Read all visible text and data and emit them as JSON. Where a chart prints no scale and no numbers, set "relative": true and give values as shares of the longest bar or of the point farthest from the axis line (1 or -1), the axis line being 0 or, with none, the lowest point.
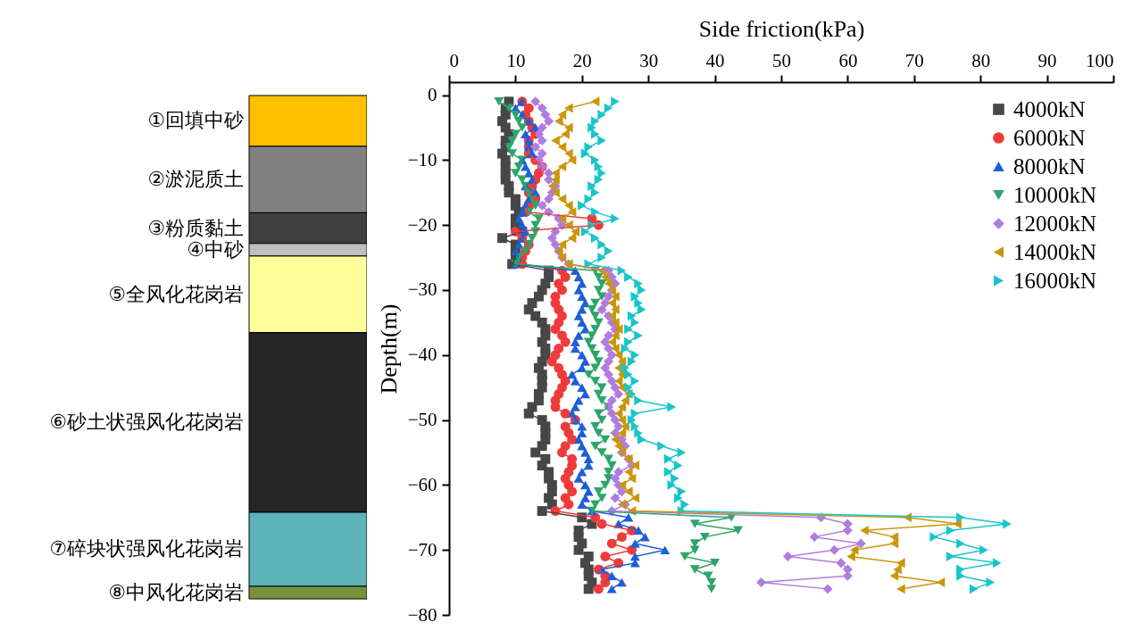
{
  "chart_data": [
    {
      "type": "bar",
      "stacked": true,
      "relative": true,
      "categories": [
        null
      ],
      "series": [
        {
          "name": "①回填中砂",
          "color": "#ffc000",
          "values": [
            -0.101
          ]
        },
        {
          "name": "②淤泥质土",
          "color": "#808080",
          "values": [
            -0.132
          ]
        },
        {
          "name": "③粉质黏土",
          "color": "#404040",
          "values": [
            -0.061
          ]
        },
        {
          "name": "④中砂",
          "color": "#bfbfbf",
          "values": [
            -0.025
          ]
        },
        {
          "name": "⑤全风化花岗岩",
          "color": "#ffff99",
          "values": [
            -0.152
          ]
        },
        {
          "name": "⑥砂土状强风化花岗岩",
          "color": "#262626",
          "values": [
            -0.357
          ]
        },
        {
          "name": "⑦碎块状强风化花岗岩",
          "color": "#5eb3b8",
          "values": [
            -0.147
          ]
        },
        {
          "name": "⑧中风化花岗岩",
          "color": "#76923c",
          "values": [
            -0.025
          ]
        }
      ]
    },
    {
      "type": "line",
      "xlabel": "Side friction(kPa)",
      "ylabel": "Depth(m)",
      "xlim": [
        0,
        100
      ],
      "xticks": [
        0,
        10,
        20,
        30,
        40,
        50,
        60,
        70,
        80,
        90,
        100
      ],
      "ylim": [
        -80,
        2
      ],
      "yticks": [
        -80,
        -70,
        -60,
        -50,
        -40,
        -30,
        -20,
        -10,
        0
      ],
      "legend": "top right",
      "series": [
        {
          "name": "4000kN",
          "color": "#474747",
          "marker": "square",
          "x": [
            9,
            8.5,
            8.5,
            8,
            8.5,
            9,
            8.5,
            8.5,
            8,
            8.5,
            8.5,
            8.5,
            8.5,
            9,
            9,
            10,
            10,
            10.5,
            10,
            10,
            11,
            8,
            10,
            10,
            10,
            9.5,
            15,
            15,
            14.5,
            14,
            13.5,
            12.5,
            12,
            13,
            14,
            14.5,
            14.5,
            14,
            14.5,
            14.5,
            14,
            13.5,
            14,
            14,
            14,
            13.5,
            13.5,
            12.5,
            12,
            14,
            14.5,
            14.5,
            14.5,
            14,
            13,
            14.5,
            14,
            15,
            15,
            15.5,
            15.5,
            15,
            15.5,
            14,
            20,
            21.5,
            19.5,
            19.5,
            20,
            19.5,
            21,
            20.5,
            21,
            21,
            21.5,
            21
          ],
          "values": [
            -1,
            -2,
            -3,
            -4,
            -5,
            -6,
            -7,
            -8,
            -9,
            -10,
            -11,
            -12,
            -13,
            -14,
            -15,
            -16,
            -17,
            -18,
            -19,
            -20,
            -21,
            -22,
            -23,
            -24,
            -25,
            -26,
            -27,
            -28,
            -29,
            -30,
            -31,
            -32,
            -33,
            -34,
            -35,
            -36,
            -37,
            -38,
            -39,
            -40,
            -41,
            -42,
            -43,
            -44,
            -45,
            -46,
            -47,
            -48,
            -49,
            -50,
            -51,
            -52,
            -53,
            -54,
            -55,
            -56,
            -57,
            -58,
            -59,
            -60,
            -61,
            -62,
            -63,
            -64,
            -65,
            -66,
            -67,
            -68,
            -69,
            -70,
            -71,
            -72,
            -73,
            -74,
            -75,
            -76
          ]
        },
        {
          "name": "6000kN",
          "color": "#ef3b3b",
          "marker": "circle",
          "x": [
            11,
            12,
            11.5,
            12,
            12.5,
            13,
            12,
            12,
            12,
            13,
            14,
            13.5,
            13,
            12.5,
            12,
            13,
            12,
            11.5,
            21.5,
            22.5,
            10,
            11,
            12,
            11.5,
            11,
            11,
            17,
            17.5,
            16.5,
            17,
            16,
            16,
            16.5,
            17,
            16.5,
            16,
            17,
            17.5,
            16.5,
            16,
            15.5,
            16.5,
            17,
            17.5,
            17,
            16.5,
            16,
            16,
            17.5,
            19,
            17.5,
            18,
            18.5,
            17.5,
            17,
            18.5,
            18.5,
            18,
            17.5,
            18,
            18.5,
            17.5,
            18,
            16,
            22,
            23,
            27.5,
            26,
            24.5,
            27.5,
            23.5,
            25.5,
            22.5,
            23.5,
            23.5,
            22.5
          ],
          "values": [
            -1,
            -2,
            -3,
            -4,
            -5,
            -6,
            -7,
            -8,
            -9,
            -10,
            -11,
            -12,
            -13,
            -14,
            -15,
            -16,
            -17,
            -18,
            -19,
            -20,
            -21,
            -22,
            -23,
            -24,
            -25,
            -26,
            -27,
            -28,
            -29,
            -30,
            -31,
            -32,
            -33,
            -34,
            -35,
            -36,
            -37,
            -38,
            -39,
            -40,
            -41,
            -42,
            -43,
            -44,
            -45,
            -46,
            -47,
            -48,
            -49,
            -50,
            -51,
            -52,
            -53,
            -54,
            -55,
            -56,
            -57,
            -58,
            -59,
            -60,
            -61,
            -62,
            -63,
            -64,
            -65,
            -66,
            -67,
            -68,
            -69,
            -70,
            -71,
            -72,
            -73,
            -74,
            -75,
            -76
          ]
        },
        {
          "name": "8000kN",
          "color": "#1d5fd8",
          "marker": "triangle-up",
          "x": [
            11,
            10,
            11,
            12,
            13,
            11.5,
            12,
            12,
            12.5,
            11,
            11.5,
            12,
            12.5,
            11.5,
            13,
            12,
            11.5,
            11,
            10.5,
            11,
            11.5,
            11,
            10.5,
            10,
            10.5,
            10,
            19,
            19.5,
            20,
            19.5,
            20,
            20.5,
            20,
            19.5,
            20,
            20.5,
            19.5,
            19,
            19,
            20,
            20.5,
            20,
            18.5,
            19,
            20,
            20.5,
            19.5,
            19,
            18.5,
            19,
            20,
            20,
            19.5,
            20,
            20.5,
            21,
            21,
            20,
            19.5,
            20.5,
            21,
            20.5,
            20,
            21.5,
            27,
            25.5,
            28.5,
            29.5,
            28,
            32.5,
            28,
            28,
            23,
            24.5,
            26,
            24.5
          ],
          "values": [
            -1,
            -2,
            -3,
            -4,
            -5,
            -6,
            -7,
            -8,
            -9,
            -10,
            -11,
            -12,
            -13,
            -14,
            -15,
            -16,
            -17,
            -18,
            -19,
            -20,
            -21,
            -22,
            -23,
            -24,
            -25,
            -26,
            -27,
            -28,
            -29,
            -30,
            -31,
            -32,
            -33,
            -34,
            -35,
            -36,
            -37,
            -38,
            -39,
            -40,
            -41,
            -42,
            -43,
            -44,
            -45,
            -46,
            -47,
            -48,
            -49,
            -50,
            -51,
            -52,
            -53,
            -54,
            -55,
            -56,
            -57,
            -58,
            -59,
            -60,
            -61,
            -62,
            -63,
            -64,
            -65,
            -66,
            -67,
            -68,
            -69,
            -70,
            -71,
            -72,
            -73,
            -74,
            -75,
            -76
          ]
        },
        {
          "name": "10000kN",
          "color": "#2ea56b",
          "marker": "triangle-down",
          "x": [
            7.5,
            9,
            10,
            10.5,
            11,
            10,
            9.5,
            9,
            9.5,
            11,
            10.5,
            10,
            11,
            11.5,
            12,
            12.5,
            13,
            12,
            13.5,
            13,
            13,
            12.5,
            12,
            11.5,
            10.5,
            10,
            22,
            22.5,
            23,
            22.5,
            23,
            22,
            21.5,
            22,
            22.5,
            22,
            21.5,
            21,
            21.5,
            22,
            22.5,
            22,
            21,
            22,
            23,
            22.5,
            23,
            24,
            22.5,
            23,
            22,
            22.5,
            23.5,
            22,
            23,
            24,
            24.5,
            24,
            24,
            23.5,
            22.5,
            23,
            22,
            21.5,
            42.5,
            37,
            43.5,
            38.5,
            37,
            37,
            35.5,
            40,
            37,
            39,
            39.5,
            39.5
          ],
          "values": [
            -1,
            -2,
            -3,
            -4,
            -5,
            -6,
            -7,
            -8,
            -9,
            -10,
            -11,
            -12,
            -13,
            -14,
            -15,
            -16,
            -17,
            -18,
            -19,
            -20,
            -21,
            -22,
            -23,
            -24,
            -25,
            -26,
            -27,
            -28,
            -29,
            -30,
            -31,
            -32,
            -33,
            -34,
            -35,
            -36,
            -37,
            -38,
            -39,
            -40,
            -41,
            -42,
            -43,
            -44,
            -45,
            -46,
            -47,
            -48,
            -49,
            -50,
            -51,
            -52,
            -53,
            -54,
            -55,
            -56,
            -57,
            -58,
            -59,
            -60,
            -61,
            -62,
            -63,
            -64,
            -65,
            -66,
            -67,
            -68,
            -69,
            -70,
            -71,
            -72,
            -73,
            -74,
            -75,
            -76
          ]
        },
        {
          "name": "12000kN",
          "color": "#b07ce0",
          "marker": "diamond",
          "x": [
            13,
            14,
            14.5,
            15,
            14,
            13.5,
            14,
            13,
            14,
            13.5,
            14,
            15,
            15,
            16,
            15.5,
            15,
            14,
            15,
            16.5,
            17,
            16,
            15.5,
            16,
            16.5,
            17,
            18,
            24,
            24.5,
            25,
            24.5,
            24,
            23.5,
            23,
            24,
            24.5,
            25,
            24,
            23.5,
            24,
            24.5,
            24,
            23.5,
            24,
            24.5,
            25,
            25.5,
            24.5,
            24,
            24.5,
            25,
            25.5,
            25,
            26,
            26.5,
            26,
            27,
            27.5,
            25.5,
            25,
            25.5,
            26,
            25,
            26.5,
            24.5,
            56,
            60,
            60,
            55,
            62,
            58,
            51,
            59,
            60,
            60,
            47,
            57
          ],
          "values": [
            -1,
            -2,
            -3,
            -4,
            -5,
            -6,
            -7,
            -8,
            -9,
            -10,
            -11,
            -12,
            -13,
            -14,
            -15,
            -16,
            -17,
            -18,
            -19,
            -20,
            -21,
            -22,
            -23,
            -24,
            -25,
            -26,
            -27,
            -28,
            -29,
            -30,
            -31,
            -32,
            -33,
            -34,
            -35,
            -36,
            -37,
            -38,
            -39,
            -40,
            -41,
            -42,
            -43,
            -44,
            -45,
            -46,
            -47,
            -48,
            -49,
            -50,
            -51,
            -52,
            -53,
            -54,
            -55,
            -56,
            -57,
            -58,
            -59,
            -60,
            -61,
            -62,
            -63,
            -64,
            -65,
            -66,
            -67,
            -68,
            -69,
            -70,
            -71,
            -72,
            -73,
            -74,
            -75,
            -76
          ]
        },
        {
          "name": "14000kN",
          "color": "#c9960c",
          "marker": "triangle-left",
          "x": [
            22,
            18,
            17,
            16.5,
            18,
            17.5,
            16,
            17,
            18,
            18.5,
            17,
            16,
            16,
            15.5,
            16,
            17,
            18,
            18.5,
            17,
            18,
            19,
            18.5,
            17,
            16.5,
            17,
            18,
            23,
            23.5,
            24,
            24.5,
            25,
            24.5,
            25,
            24.5,
            25,
            25.5,
            25,
            24.5,
            25,
            25.5,
            26,
            25.5,
            26,
            25.5,
            26,
            27,
            26.5,
            26,
            25.5,
            26,
            26.5,
            26,
            25,
            25.5,
            26,
            27,
            28,
            27,
            27.5,
            26,
            27,
            28,
            26,
            27.5,
            69,
            76.5,
            62.5,
            67,
            67,
            61,
            60.5,
            68,
            67.5,
            67,
            74,
            68
          ],
          "values": [
            -1,
            -2,
            -3,
            -4,
            -5,
            -6,
            -7,
            -8,
            -9,
            -10,
            -11,
            -12,
            -13,
            -14,
            -15,
            -16,
            -17,
            -18,
            -19,
            -20,
            -21,
            -22,
            -23,
            -24,
            -25,
            -26,
            -27,
            -28,
            -29,
            -30,
            -31,
            -32,
            -33,
            -34,
            -35,
            -36,
            -37,
            -38,
            -39,
            -40,
            -41,
            -42,
            -43,
            -44,
            -45,
            -46,
            -47,
            -48,
            -49,
            -50,
            -51,
            -52,
            -53,
            -54,
            -55,
            -56,
            -57,
            -58,
            -59,
            -60,
            -61,
            -62,
            -63,
            -64,
            -65,
            -66,
            -67,
            -68,
            -69,
            -70,
            -71,
            -72,
            -73,
            -74,
            -75,
            -76
          ]
        },
        {
          "name": "16000kN",
          "color": "#19c5ca",
          "marker": "triangle-right",
          "x": [
            25,
            24,
            23,
            22,
            21.5,
            22,
            23,
            21,
            20.5,
            22,
            22.5,
            23,
            22.5,
            21.5,
            22,
            21,
            20,
            22,
            25,
            21.5,
            20.5,
            22,
            23,
            24,
            23,
            21,
            26,
            27,
            28.5,
            29,
            28,
            28.5,
            29,
            27.5,
            28,
            27,
            28.5,
            27,
            26.5,
            28,
            27.5,
            26.5,
            27,
            28,
            27,
            27.5,
            28.5,
            33.5,
            28,
            27.5,
            28,
            28.5,
            29,
            32,
            35,
            33,
            34.5,
            33,
            34,
            33.5,
            35,
            34.5,
            35.5,
            35,
            77,
            84,
            75.5,
            73,
            77,
            80.5,
            75.5,
            82.5,
            77,
            77,
            81.5,
            79
          ],
          "values": [
            -1,
            -2,
            -3,
            -4,
            -5,
            -6,
            -7,
            -8,
            -9,
            -10,
            -11,
            -12,
            -13,
            -14,
            -15,
            -16,
            -17,
            -18,
            -19,
            -20,
            -21,
            -22,
            -23,
            -24,
            -25,
            -26,
            -27,
            -28,
            -29,
            -30,
            -31,
            -32,
            -33,
            -34,
            -35,
            -36,
            -37,
            -38,
            -39,
            -40,
            -41,
            -42,
            -43,
            -44,
            -45,
            -46,
            -47,
            -48,
            -49,
            -50,
            -51,
            -52,
            -53,
            -54,
            -55,
            -56,
            -57,
            -58,
            -59,
            -60,
            -61,
            -62,
            -63,
            -64,
            -65,
            -66,
            -67,
            -68,
            -69,
            -70,
            -71,
            -72,
            -73,
            -74,
            -75,
            -76
          ]
        }
      ]
    }
  ]
}
